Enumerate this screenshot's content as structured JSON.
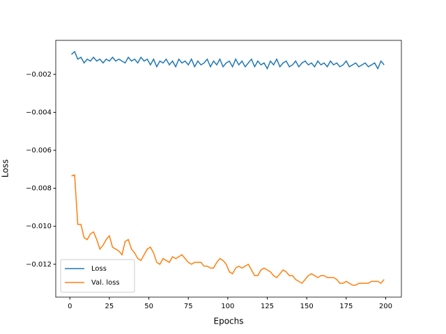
{
  "chart_data": {
    "type": "line",
    "xlabel": "Epochs",
    "ylabel": "Loss",
    "x": [
      1,
      3,
      5,
      7,
      9,
      11,
      13,
      15,
      17,
      19,
      21,
      23,
      25,
      27,
      29,
      31,
      33,
      35,
      37,
      39,
      41,
      43,
      45,
      47,
      49,
      51,
      53,
      55,
      57,
      59,
      61,
      63,
      65,
      67,
      69,
      71,
      73,
      75,
      77,
      79,
      81,
      83,
      85,
      87,
      89,
      91,
      93,
      95,
      97,
      99,
      101,
      103,
      105,
      107,
      109,
      111,
      113,
      115,
      117,
      119,
      121,
      123,
      125,
      127,
      129,
      131,
      133,
      135,
      137,
      139,
      141,
      143,
      145,
      147,
      149,
      151,
      153,
      155,
      157,
      159,
      161,
      163,
      165,
      167,
      169,
      171,
      173,
      175,
      177,
      179,
      181,
      183,
      185,
      187,
      189,
      191,
      193,
      195,
      197,
      199
    ],
    "series": [
      {
        "name": "Loss",
        "color": "#1f77b4",
        "values": [
          -0.00095,
          -0.0008,
          -0.0012,
          -0.0011,
          -0.0014,
          -0.0012,
          -0.0013,
          -0.0011,
          -0.0013,
          -0.0012,
          -0.0014,
          -0.0012,
          -0.0013,
          -0.0011,
          -0.0013,
          -0.0012,
          -0.0013,
          -0.0014,
          -0.0011,
          -0.0013,
          -0.0012,
          -0.0014,
          -0.0011,
          -0.0013,
          -0.0012,
          -0.0015,
          -0.0012,
          -0.0016,
          -0.0013,
          -0.0014,
          -0.0012,
          -0.0015,
          -0.0013,
          -0.0016,
          -0.0012,
          -0.0014,
          -0.0013,
          -0.0015,
          -0.0012,
          -0.0016,
          -0.0013,
          -0.0015,
          -0.0014,
          -0.0012,
          -0.0016,
          -0.0013,
          -0.0015,
          -0.0012,
          -0.0016,
          -0.0014,
          -0.0013,
          -0.0016,
          -0.0012,
          -0.0015,
          -0.0013,
          -0.0016,
          -0.0014,
          -0.0012,
          -0.0016,
          -0.0013,
          -0.0015,
          -0.0014,
          -0.0017,
          -0.0013,
          -0.0015,
          -0.0012,
          -0.0016,
          -0.0014,
          -0.0013,
          -0.0016,
          -0.0015,
          -0.0013,
          -0.0016,
          -0.0014,
          -0.0013,
          -0.0015,
          -0.0014,
          -0.0016,
          -0.0013,
          -0.0015,
          -0.0014,
          -0.0016,
          -0.0013,
          -0.0015,
          -0.0014,
          -0.0016,
          -0.0015,
          -0.0013,
          -0.0016,
          -0.0015,
          -0.0014,
          -0.0016,
          -0.0015,
          -0.0014,
          -0.0016,
          -0.0015,
          -0.0014,
          -0.0017,
          -0.0013,
          -0.0015
        ]
      },
      {
        "name": "Val. loss",
        "color": "#ff7f0e",
        "values": [
          -0.00735,
          -0.0073,
          -0.0099,
          -0.0099,
          -0.0106,
          -0.0107,
          -0.0104,
          -0.0103,
          -0.0107,
          -0.0112,
          -0.011,
          -0.0107,
          -0.0105,
          -0.0111,
          -0.0112,
          -0.0113,
          -0.0115,
          -0.0108,
          -0.0107,
          -0.0112,
          -0.0114,
          -0.0117,
          -0.0118,
          -0.0115,
          -0.0112,
          -0.0111,
          -0.0114,
          -0.0119,
          -0.012,
          -0.0117,
          -0.0118,
          -0.0119,
          -0.0116,
          -0.0117,
          -0.0116,
          -0.0115,
          -0.0117,
          -0.0119,
          -0.012,
          -0.0119,
          -0.0119,
          -0.0119,
          -0.0121,
          -0.0121,
          -0.0122,
          -0.0122,
          -0.0119,
          -0.0117,
          -0.0118,
          -0.012,
          -0.0124,
          -0.0125,
          -0.0122,
          -0.0121,
          -0.0122,
          -0.0121,
          -0.012,
          -0.0123,
          -0.0126,
          -0.0126,
          -0.0123,
          -0.0122,
          -0.0123,
          -0.0124,
          -0.0126,
          -0.0127,
          -0.0125,
          -0.0123,
          -0.0124,
          -0.0126,
          -0.0126,
          -0.0128,
          -0.0129,
          -0.013,
          -0.0128,
          -0.0126,
          -0.0125,
          -0.0126,
          -0.0127,
          -0.0126,
          -0.0126,
          -0.0127,
          -0.0127,
          -0.0127,
          -0.0128,
          -0.013,
          -0.013,
          -0.0129,
          -0.013,
          -0.0131,
          -0.0131,
          -0.013,
          -0.013,
          -0.013,
          -0.013,
          -0.0129,
          -0.0129,
          -0.0129,
          -0.013,
          -0.0128
        ]
      }
    ],
    "xlim": [
      -8.95,
      209.95
    ],
    "xticks": [
      0,
      25,
      50,
      75,
      100,
      125,
      150,
      175,
      200
    ],
    "ylim": [
      -0.01373,
      -0.00021
    ],
    "yticks": [
      {
        "value": -0.012,
        "label": "−0.012"
      },
      {
        "value": -0.01,
        "label": "−0.010"
      },
      {
        "value": -0.008,
        "label": "−0.008"
      },
      {
        "value": -0.006,
        "label": "−0.006"
      },
      {
        "value": -0.004,
        "label": "−0.004"
      },
      {
        "value": -0.002,
        "label": "−0.002"
      }
    ],
    "legend": "lower left",
    "grid": false
  }
}
